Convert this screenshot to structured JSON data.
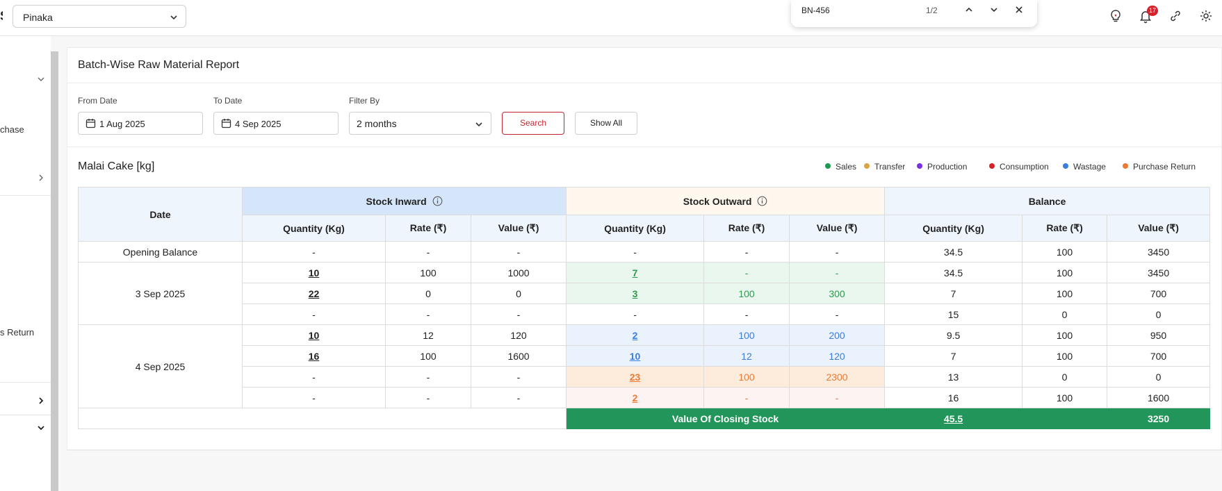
{
  "topbar": {
    "company": "Pinaka",
    "find": {
      "query": "BN-456",
      "count": "1/2"
    },
    "notification_count": "17",
    "icons": [
      "bulb-icon",
      "bell-icon",
      "link-icon",
      "gear-icon"
    ]
  },
  "sidebar": {
    "items": [
      "chase",
      "s Return"
    ]
  },
  "report": {
    "title": "Batch-Wise Raw Material Report",
    "filters": {
      "from_label": "From Date",
      "from_value": "1 Aug 2025",
      "to_label": "To Date",
      "to_value": "4 Sep 2025",
      "filter_label": "Filter By",
      "filter_value": "2 months",
      "search_label": "Search",
      "show_all_label": "Show All"
    },
    "product": "Malai Cake [kg]",
    "legend": [
      {
        "label": "Sales",
        "color": "#1f9a52"
      },
      {
        "label": "Transfer",
        "color": "#d9a441"
      },
      {
        "label": "Production",
        "color": "#7b2fe0"
      },
      {
        "label": "Consumption",
        "color": "#d6232b"
      },
      {
        "label": "Wastage",
        "color": "#3b7ddd"
      },
      {
        "label": "Purchase Return",
        "color": "#ea7a33"
      }
    ]
  },
  "table": {
    "headers": {
      "date": "Date",
      "inward": "Stock Inward",
      "outward": "Stock Outward",
      "balance": "Balance",
      "qty": "Quantity (Kg)",
      "rate": "Rate (₹)",
      "value": "Value (₹)"
    },
    "opening": {
      "label": "Opening Balance",
      "in": [
        "-",
        "-",
        "-"
      ],
      "out": [
        "-",
        "-",
        "-"
      ],
      "bal": [
        "34.5",
        "100",
        "3450"
      ]
    },
    "groups": [
      {
        "date": "3 Sep 2025",
        "rows": [
          {
            "in": [
              "10",
              "100",
              "1000"
            ],
            "out": [
              "7",
              "-",
              "-"
            ],
            "bal": [
              "34.5",
              "100",
              "3450"
            ],
            "style": "green",
            "in_link": true,
            "out_link": true
          },
          {
            "in": [
              "22",
              "0",
              "0"
            ],
            "out": [
              "3",
              "100",
              "300"
            ],
            "bal": [
              "7",
              "100",
              "700"
            ],
            "style": "green",
            "in_link": true,
            "out_link": true
          },
          {
            "in": [
              "-",
              "-",
              "-"
            ],
            "out": [
              "-",
              "-",
              "-"
            ],
            "bal": [
              "15",
              "0",
              "0"
            ],
            "style": "",
            "in_link": false,
            "out_link": false
          }
        ]
      },
      {
        "date": "4 Sep 2025",
        "rows": [
          {
            "in": [
              "10",
              "12",
              "120"
            ],
            "out": [
              "2",
              "100",
              "200"
            ],
            "bal": [
              "9.5",
              "100",
              "950"
            ],
            "style": "blue",
            "in_link": true,
            "out_link": true
          },
          {
            "in": [
              "16",
              "100",
              "1600"
            ],
            "out": [
              "10",
              "12",
              "120"
            ],
            "bal": [
              "7",
              "100",
              "700"
            ],
            "style": "blue",
            "in_link": true,
            "out_link": true
          },
          {
            "in": [
              "-",
              "-",
              "-"
            ],
            "out": [
              "23",
              "100",
              "2300"
            ],
            "bal": [
              "13",
              "0",
              "0"
            ],
            "style": "orange",
            "in_link": false,
            "out_link": true
          },
          {
            "in": [
              "-",
              "-",
              "-"
            ],
            "out": [
              "2",
              "-",
              "-"
            ],
            "bal": [
              "16",
              "100",
              "1600"
            ],
            "style": "pink",
            "in_link": false,
            "out_link": true
          }
        ]
      }
    ],
    "closing": {
      "label": "Value Of Closing Stock",
      "qty": "45.5",
      "rate": "",
      "value": "3250"
    }
  }
}
